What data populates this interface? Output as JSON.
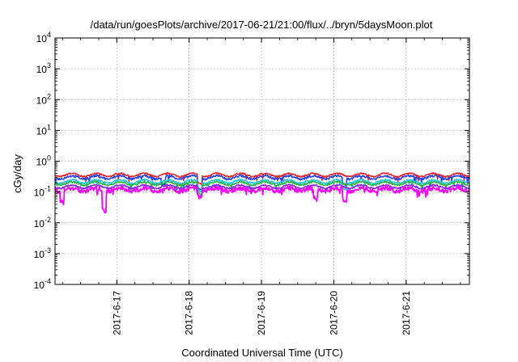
{
  "chart_data": {
    "type": "line",
    "title": "/data/run/goesPlots/archive/2017-06-21/21:00/flux/../bryn/5daysMoon.plot",
    "xlabel": "Coordinated Universal Time (UTC)",
    "ylabel": "cGy/day",
    "yscale": "log",
    "ylim": [
      0.0001,
      10000
    ],
    "y_ticks": [
      {
        "base": "10",
        "exp": "-4",
        "value": 0.0001
      },
      {
        "base": "10",
        "exp": "-3",
        "value": 0.001
      },
      {
        "base": "10",
        "exp": "-2",
        "value": 0.01
      },
      {
        "base": "10",
        "exp": "-1",
        "value": 0.1
      },
      {
        "base": "10",
        "exp": "0",
        "value": 1
      },
      {
        "base": "10",
        "exp": "1",
        "value": 10
      },
      {
        "base": "10",
        "exp": "2",
        "value": 100
      },
      {
        "base": "10",
        "exp": "3",
        "value": 1000
      },
      {
        "base": "10",
        "exp": "4",
        "value": 10000
      }
    ],
    "xlim": [
      "2017-06-16 03:30",
      "2017-06-21 21:00"
    ],
    "x_ticks": [
      "2017-6-17",
      "2017-6-18",
      "2017-6-19",
      "2017-6-20",
      "2017-6-21"
    ],
    "grid": true,
    "legend": "none",
    "series": [
      {
        "color": "#e8262a",
        "base": 0.36,
        "noise": 0.05,
        "dips": [
          {
            "day": 2.0,
            "factor": 0.55
          }
        ]
      },
      {
        "color": "#2d46e6",
        "base": 0.3,
        "noise": 0.08,
        "dips": [
          {
            "day": 1.5,
            "factor": 0.55
          },
          {
            "day": 2.0,
            "factor": 0.45
          },
          {
            "day": 4.0,
            "factor": 0.6
          }
        ]
      },
      {
        "color": "#28c8d8",
        "base": 0.22,
        "noise": 0.07,
        "dips": [
          {
            "day": 2.0,
            "factor": 0.5
          },
          {
            "day": 4.0,
            "factor": 0.6
          }
        ]
      },
      {
        "color": "#2bb34a",
        "base": 0.19,
        "noise": 0.06,
        "dips": [
          {
            "day": 2.0,
            "factor": 0.5
          }
        ]
      },
      {
        "color": "#8a2be2",
        "base": 0.15,
        "noise": 0.06,
        "dips": [
          {
            "day": 2.0,
            "factor": 0.5
          }
        ]
      },
      {
        "color": "#ff00ff",
        "base": 0.12,
        "noise": 0.15,
        "dips": [
          {
            "day": 0.1,
            "factor": 0.45
          },
          {
            "day": 0.68,
            "factor": 0.22
          },
          {
            "day": 2.0,
            "factor": 0.6
          },
          {
            "day": 3.6,
            "factor": 0.5
          },
          {
            "day": 4.0,
            "factor": 0.45
          }
        ]
      }
    ]
  }
}
